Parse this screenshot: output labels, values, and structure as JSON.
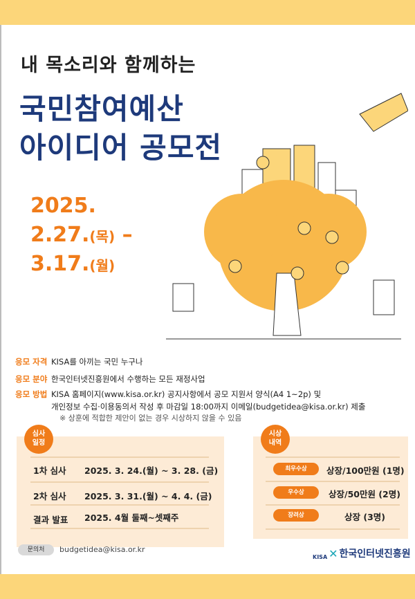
{
  "header": {
    "subtitle": "내 목소리와 함께하는",
    "title_line1": "국민참여예산",
    "title_line2": "아이디어 공모전"
  },
  "period": {
    "year": "2025.",
    "start": "2.27.",
    "start_day": "(목)",
    "dash": "–",
    "end": "3.17.",
    "end_day": "(월)"
  },
  "details": [
    {
      "label": "응모 자격",
      "value": "KISA를 아끼는 국민 누구나"
    },
    {
      "label": "응모 분야",
      "value": "한국인터넷진흥원에서 수행하는 모든 재정사업"
    },
    {
      "label": "응모 방법",
      "value": "KISA 홈페이지(www.kisa.or.kr) 공지사항에서 공모 지원서 양식(A4 1~2p) 및",
      "value2": "개인정보 수집·이용동의서 작성 후 마감일 18:00까지 이메일(budgetidea@kisa.or.kr) 제출"
    }
  ],
  "note": "※ 상훈에 적합한 제안이 없는 경우 시상하지 않을 수 있음",
  "schedule": {
    "badge_line1": "심사",
    "badge_line2": "일정",
    "rows": [
      {
        "label": "1차 심사",
        "value": "2025. 3. 24.(월) ~ 3. 28. (금)"
      },
      {
        "label": "2차 심사",
        "value": "2025. 3. 31.(월) ~ 4. 4. (금)"
      },
      {
        "label": "결과 발표",
        "value": "2025. 4월 둘째~셋째주"
      }
    ]
  },
  "awards": {
    "badge_line1": "시상",
    "badge_line2": "내역",
    "rows": [
      {
        "label": "최우수상",
        "value": "상장/100만원 (1명)"
      },
      {
        "label": "우수상",
        "value": "상장/50만원 (2명)"
      },
      {
        "label": "장려상",
        "value": "상장 (3명)"
      }
    ]
  },
  "contact": {
    "label": "문의처",
    "email": "budgetidea@kisa.or.kr"
  },
  "logo": {
    "short": "KISA",
    "name": "한국인터넷진흥원"
  },
  "colors": {
    "accent": "#f07c1a",
    "navy": "#1e3a7b",
    "band": "#fcd67a"
  }
}
